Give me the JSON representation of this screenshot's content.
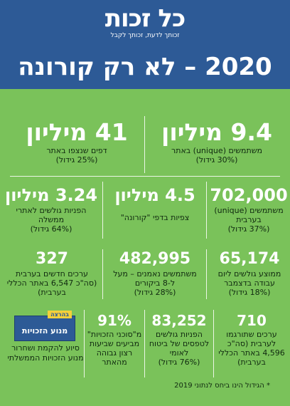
{
  "header": {
    "logo_text": "כל זכות",
    "logo_tagline": "זכותך לדעת, זכותך לקבל",
    "title": "2020 – לא רק קורונה"
  },
  "stats": {
    "users": {
      "number": "9.4 מיליון",
      "desc": "משתמשים (unique) באתר",
      "growth": "(30% גידול)"
    },
    "pages": {
      "number": "41 מיליון",
      "desc": "דפים שנצפו באתר",
      "growth": "(25% גידול)"
    },
    "unique_arabic": {
      "number": "702,000",
      "desc": "משתמשים (unique) בערבית",
      "growth": "(37% גידול)"
    },
    "corona_views": {
      "number": "4.5 מיליון",
      "desc": "צפיות בדפי \"קורונה\""
    },
    "gov_referrals": {
      "number": "3.24 מיליון",
      "desc": "הפניות גולשים לאתרי ממשלה",
      "growth": "(64% גידול)"
    },
    "daily_december": {
      "number": "65,174",
      "desc": "ממוצע גולשים ליום עבודה בדצמבר",
      "growth": "(18% גידול)"
    },
    "trusted_users": {
      "number": "482,995",
      "desc": "משתמשים נאמנים – מעל ל-8 ביקורים",
      "growth": "(28% גידול)"
    },
    "new_arabic": {
      "number": "327",
      "desc": "ערכים חדשים בערבית (סה\"כ 6,547 באתר הכללי בערבית)"
    },
    "translated": {
      "number": "710",
      "desc": "ערכים שתורגמו לערבית (סה\"כ 4,596 באתר הכללי בערבית)"
    },
    "insurance": {
      "number": "83,252",
      "desc": "הפניות גולשים לטפסים של ביטוח לאומי",
      "growth": "(76% גידול)"
    },
    "satisfaction": {
      "number": "91%",
      "desc": "מ\"סוכני הזכויות\" מביעים שביעות רצון גבוהה מהאתר"
    }
  },
  "badge": {
    "tag": "בהרצה",
    "title": "מנוע הזכויות",
    "desc": "סיוע להקמת ושחרור מנוע הזכויות הממשלתי"
  },
  "footnote": "* הגידול הינו ביחס לנתוני 2019"
}
